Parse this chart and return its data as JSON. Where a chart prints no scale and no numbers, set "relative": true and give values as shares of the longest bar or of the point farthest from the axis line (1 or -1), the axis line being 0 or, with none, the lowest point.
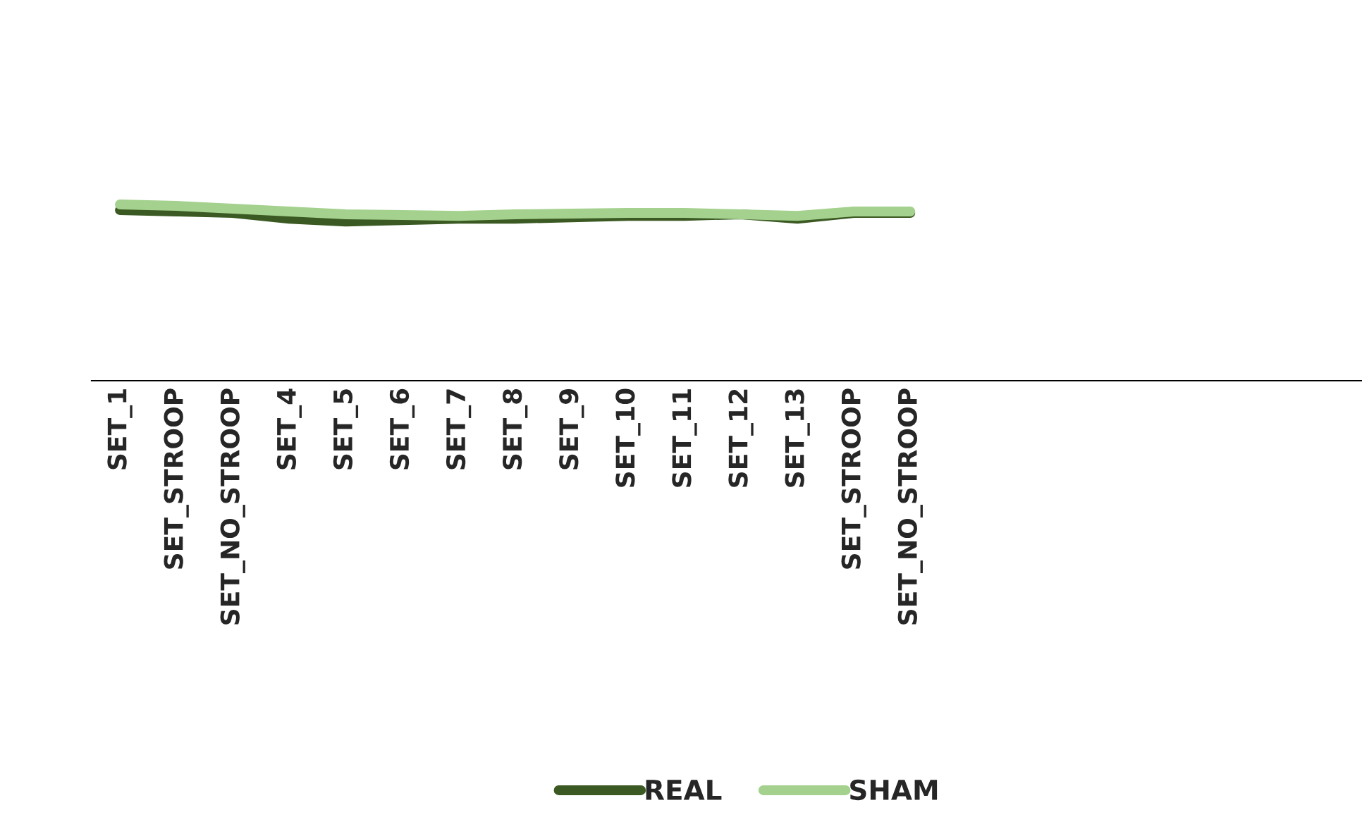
{
  "chart_data": {
    "type": "line",
    "relative": true,
    "categories": [
      "SET_1",
      "SET_STROOP",
      "SET_NO_STROOP",
      "SET_4",
      "SET_5",
      "SET_6",
      "SET_7",
      "SET_8",
      "SET_9",
      "SET_10",
      "SET_11",
      "SET_12",
      "SET_13",
      "SET_STROOP",
      "SET_NO_STROOP"
    ],
    "series": [
      {
        "name": "REAL",
        "color": "#3b5a23",
        "values": [
          0.968,
          0.96,
          0.952,
          0.919,
          0.903,
          0.911,
          0.919,
          0.919,
          0.927,
          0.935,
          0.935,
          0.944,
          0.919,
          0.952,
          0.952
        ]
      },
      {
        "name": "SHAM",
        "color": "#a4d18d",
        "values": [
          1,
          0.992,
          0.976,
          0.96,
          0.944,
          0.94,
          0.935,
          0.944,
          0.948,
          0.952,
          0.952,
          0.944,
          0.935,
          0.96,
          0.96
        ]
      }
    ],
    "legend": "bottom",
    "grid": false,
    "marker": "none",
    "line_style": "solid"
  }
}
